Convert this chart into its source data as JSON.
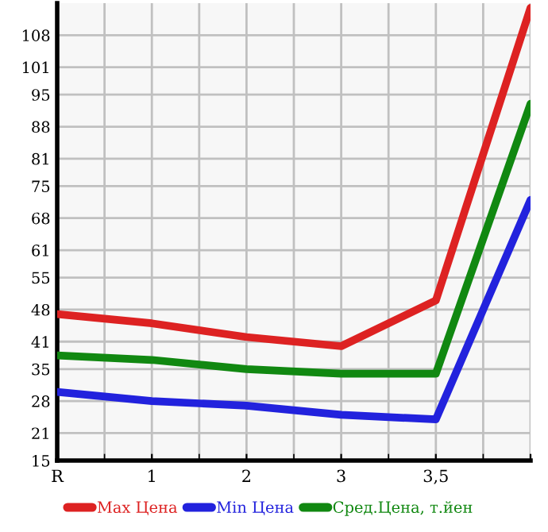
{
  "chart_data": {
    "type": "line",
    "categories": [
      "R",
      "1",
      "2",
      "3",
      "3,5",
      null
    ],
    "series": [
      {
        "name": "Max Цена",
        "color": "#dd2222",
        "values": [
          47,
          45,
          42,
          40,
          50,
          114
        ]
      },
      {
        "name": "Min Цена",
        "color": "#2222dd",
        "values": [
          30,
          28,
          27,
          25,
          24,
          72
        ]
      },
      {
        "name": "Сред.Цена, т.йен",
        "color": "#118811",
        "values": [
          38,
          37,
          35,
          34,
          34,
          93
        ]
      }
    ],
    "ylim": [
      15,
      115
    ],
    "yticks": [
      15,
      21,
      28,
      35,
      41,
      48,
      55,
      61,
      68,
      75,
      81,
      88,
      95,
      101,
      108
    ],
    "grid": true,
    "legend": "bottom",
    "marker": "none",
    "line_style": "solid"
  }
}
